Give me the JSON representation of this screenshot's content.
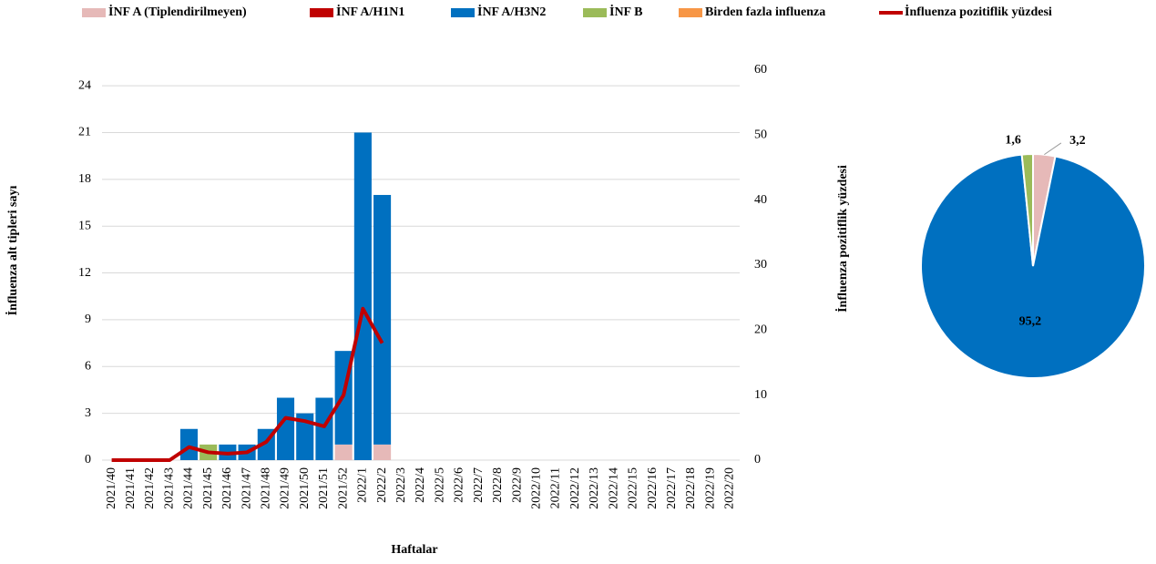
{
  "chart_data": [
    {
      "type": "bar",
      "xlabel": "Haftalar",
      "ylabel": "İnfluenza alt tipleri sayı",
      "y2label": "İnfluenza pozitiflik yüzdesi",
      "categories": [
        "2021/40",
        "2021/41",
        "2021/42",
        "2021/43",
        "2021/44",
        "2021/45",
        "2021/46",
        "2021/47",
        "2021/48",
        "2021/49",
        "2021/50",
        "2021/51",
        "2021/52",
        "2022/1",
        "2022/2",
        "2022/3",
        "2022/4",
        "2022/5",
        "2022/6",
        "2022/7",
        "2022/8",
        "2022/9",
        "2022/10",
        "2022/11",
        "2022/12",
        "2022/13",
        "2022/14",
        "2022/15",
        "2022/16",
        "2022/17",
        "2022/18",
        "2022/19",
        "2022/20"
      ],
      "series": [
        {
          "name": "İNF A (Tiplendirilmeyen)",
          "color": "#e6b9b8",
          "values": [
            0,
            0,
            0,
            0,
            0,
            0,
            0,
            0,
            0,
            0,
            0,
            0,
            1,
            0,
            1,
            null,
            null,
            null,
            null,
            null,
            null,
            null,
            null,
            null,
            null,
            null,
            null,
            null,
            null,
            null,
            null,
            null,
            null
          ]
        },
        {
          "name": "İNF A/H1N1",
          "color": "#c00000",
          "values": [
            0,
            0,
            0,
            0,
            0,
            0,
            0,
            0,
            0,
            0,
            0,
            0,
            0,
            0,
            0,
            null,
            null,
            null,
            null,
            null,
            null,
            null,
            null,
            null,
            null,
            null,
            null,
            null,
            null,
            null,
            null,
            null,
            null
          ]
        },
        {
          "name": "İNF A/H3N2",
          "color": "#0070c0",
          "values": [
            0,
            0,
            0,
            0,
            2,
            0,
            1,
            1,
            2,
            4,
            3,
            4,
            6,
            21,
            16,
            null,
            null,
            null,
            null,
            null,
            null,
            null,
            null,
            null,
            null,
            null,
            null,
            null,
            null,
            null,
            null,
            null,
            null
          ]
        },
        {
          "name": "İNF B",
          "color": "#9bbb59",
          "values": [
            0,
            0,
            0,
            0,
            0,
            1,
            0,
            0,
            0,
            0,
            0,
            0,
            0,
            0,
            0,
            null,
            null,
            null,
            null,
            null,
            null,
            null,
            null,
            null,
            null,
            null,
            null,
            null,
            null,
            null,
            null,
            null,
            null
          ]
        },
        {
          "name": "Birden fazla influenza",
          "color": "#f79646",
          "values": [
            0,
            0,
            0,
            0,
            0,
            0,
            0,
            0,
            0,
            0,
            0,
            0,
            0,
            0,
            0,
            null,
            null,
            null,
            null,
            null,
            null,
            null,
            null,
            null,
            null,
            null,
            null,
            null,
            null,
            null,
            null,
            null,
            null
          ]
        },
        {
          "name": "İnfluenza pozitiflik yüzdesi",
          "color": "#c00000",
          "type": "line",
          "axis": "y2",
          "values": [
            0,
            0,
            0,
            0,
            2,
            1.2,
            1,
            1.2,
            2.8,
            6.5,
            6,
            5.2,
            10,
            23.3,
            18,
            null,
            null,
            null,
            null,
            null,
            null,
            null,
            null,
            null,
            null,
            null,
            null,
            null,
            null,
            null,
            null,
            null,
            null
          ]
        }
      ],
      "ylim": [
        0,
        25
      ],
      "yticks": [
        0,
        3,
        6,
        9,
        12,
        15,
        18,
        21,
        24
      ],
      "y2lim": [
        0,
        60
      ],
      "y2ticks": [
        0,
        10,
        20,
        30,
        40,
        50,
        60
      ],
      "grid": true,
      "legend": "top"
    },
    {
      "type": "pie",
      "values": [
        3.2,
        95.2,
        1.6
      ],
      "value_labels": [
        "3,2",
        "95,2",
        "1,6"
      ],
      "colors": [
        "#e6b9b8",
        "#0070c0",
        "#9bbb59"
      ]
    }
  ]
}
